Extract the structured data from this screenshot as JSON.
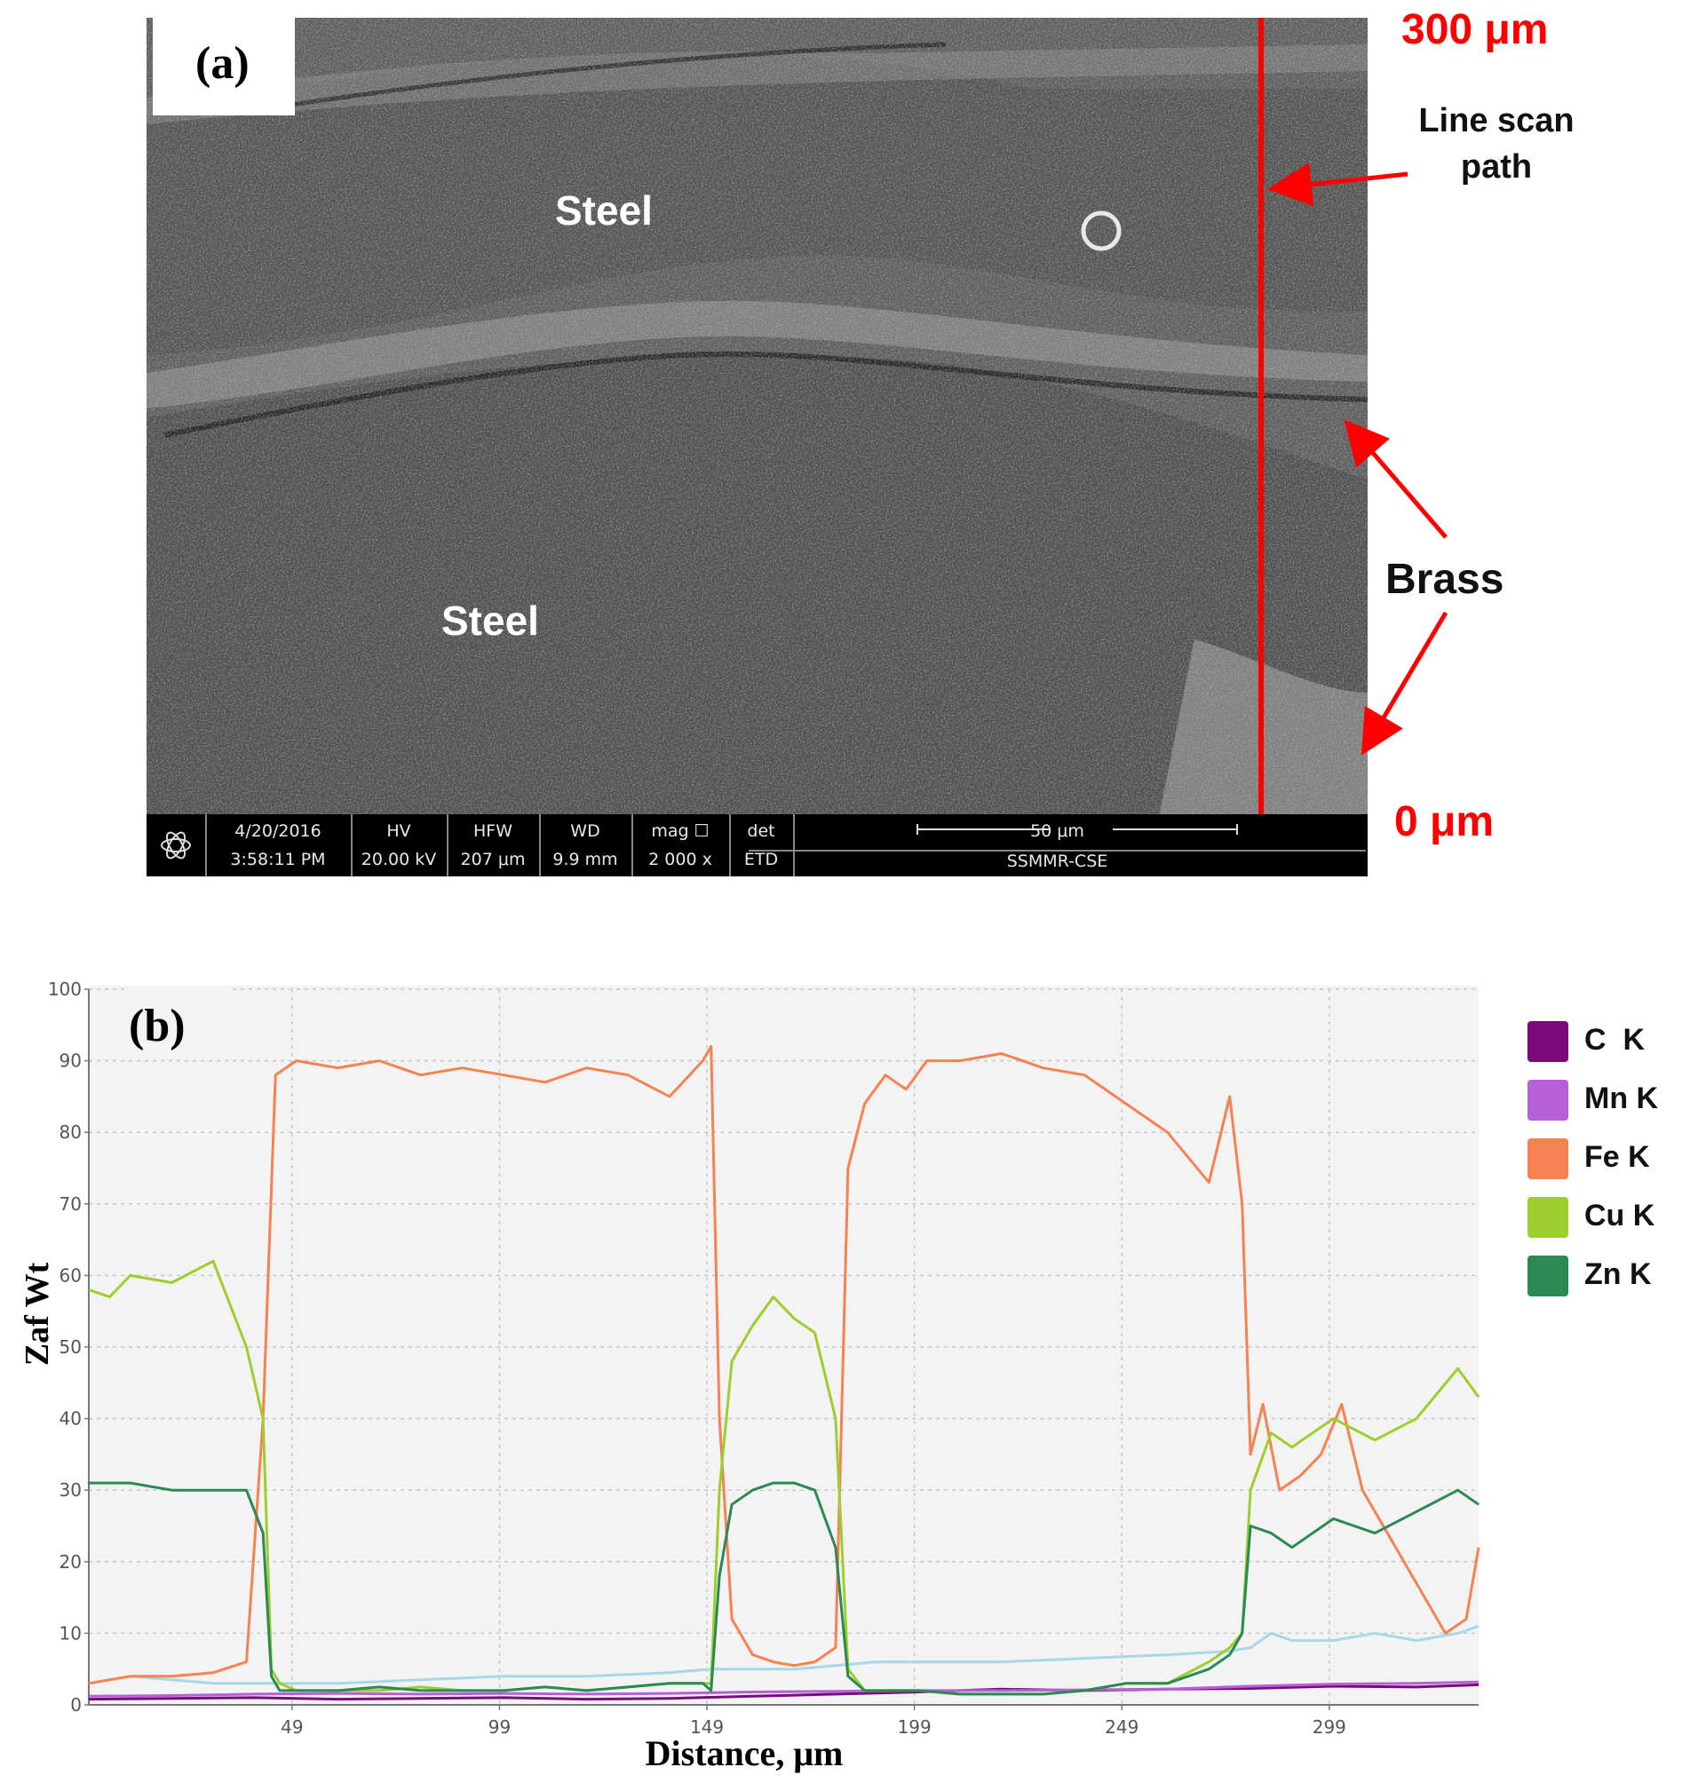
{
  "panel_a": {
    "letter": "(a)",
    "phases": [
      "Steel",
      "Steel"
    ],
    "annotations": {
      "top_scale": "300 μm",
      "bottom_scale": "0 μm",
      "line_scan": "Line scan\npath",
      "line_scan_l1": "Line scan",
      "line_scan_l2": "path",
      "brass": "Brass"
    },
    "info_bar": {
      "date": "4/20/2016",
      "time": "3:58:11 PM",
      "hv_label": "HV",
      "hv_value": "20.00 kV",
      "hfw_label": "HFW",
      "hfw_value": "207 μm",
      "wd_label": "WD",
      "wd_value": "9.9 mm",
      "mag_label": "mag",
      "mag_value": "2 000 x",
      "det_label": "det",
      "det_value": "ETD",
      "scale_label": "50 μm",
      "lab": "SSMMR-CSE"
    },
    "colors": {
      "annotation": "#ff0000",
      "scan_line": "#ff0000"
    }
  },
  "chart_data": {
    "type": "line",
    "panel_letter": "(b)",
    "xlabel": "Distance, μm",
    "ylabel": "Zaf Wt",
    "xlim": [
      0,
      335
    ],
    "ylim": [
      0,
      100
    ],
    "x_ticks": [
      49,
      99,
      149,
      199,
      249,
      299
    ],
    "y_ticks": [
      0,
      10,
      20,
      30,
      40,
      50,
      60,
      70,
      80,
      90,
      100
    ],
    "grid": true,
    "legend_position": "right",
    "series": [
      {
        "name": "C  K",
        "color": "#7a0a7a",
        "x": [
          0,
          20,
          40,
          60,
          80,
          100,
          120,
          140,
          160,
          180,
          200,
          220,
          240,
          260,
          280,
          300,
          320,
          335
        ],
        "y": [
          0.8,
          0.9,
          1.0,
          0.8,
          0.9,
          1.0,
          0.8,
          0.9,
          1.2,
          1.5,
          1.8,
          2.2,
          2.0,
          2.2,
          2.3,
          2.6,
          2.5,
          2.8
        ]
      },
      {
        "name": "Mn K",
        "color": "#b660d8",
        "x": [
          0,
          20,
          40,
          60,
          80,
          100,
          120,
          140,
          160,
          180,
          200,
          220,
          240,
          260,
          280,
          300,
          320,
          335
        ],
        "y": [
          1.2,
          1.3,
          1.5,
          1.6,
          1.5,
          1.6,
          1.5,
          1.6,
          1.8,
          1.9,
          2.0,
          2.0,
          2.1,
          2.2,
          2.6,
          2.9,
          3.0,
          3.2
        ]
      },
      {
        "name": "Fe K",
        "color": "#f58250",
        "x": [
          0,
          10,
          20,
          30,
          38,
          42,
          45,
          50,
          60,
          70,
          80,
          90,
          100,
          110,
          120,
          130,
          140,
          148,
          150,
          152,
          155,
          160,
          165,
          170,
          175,
          180,
          183,
          187,
          192,
          197,
          202,
          210,
          220,
          230,
          240,
          250,
          260,
          270,
          275,
          278,
          280,
          283,
          287,
          292,
          297,
          302,
          307,
          312,
          317,
          322,
          327,
          332,
          335
        ],
        "y": [
          3,
          4,
          4,
          4.5,
          6,
          40,
          88,
          90,
          89,
          90,
          88,
          89,
          88,
          87,
          89,
          88,
          85,
          90,
          92,
          40,
          12,
          7,
          6,
          5.5,
          6,
          8,
          75,
          84,
          88,
          86,
          90,
          90,
          91,
          89,
          88,
          84,
          80,
          73,
          85,
          70,
          35,
          42,
          30,
          32,
          35,
          42,
          30,
          25,
          20,
          15,
          10,
          12,
          22
        ]
      },
      {
        "name": "Cu K",
        "color": "#9ccf2e",
        "x": [
          0,
          5,
          10,
          20,
          30,
          38,
          42,
          44,
          46,
          50,
          60,
          70,
          80,
          90,
          100,
          110,
          120,
          130,
          140,
          148,
          150,
          152,
          155,
          160,
          165,
          170,
          175,
          180,
          183,
          187,
          192,
          200,
          210,
          220,
          230,
          240,
          250,
          260,
          270,
          275,
          278,
          280,
          285,
          290,
          300,
          310,
          320,
          330,
          335
        ],
        "y": [
          58,
          57,
          60,
          59,
          62,
          50,
          40,
          5,
          3,
          2,
          2,
          2,
          2.5,
          2,
          2,
          2.5,
          2,
          2.5,
          3,
          3,
          3,
          30,
          48,
          53,
          57,
          54,
          52,
          40,
          5,
          2,
          2,
          2,
          1.5,
          1.5,
          1.5,
          2,
          3,
          3,
          6,
          8,
          10,
          30,
          38,
          36,
          40,
          37,
          40,
          47,
          43
        ]
      },
      {
        "name": "Zn K",
        "color": "#2a8a52",
        "x": [
          0,
          10,
          20,
          30,
          38,
          42,
          44,
          46,
          50,
          60,
          70,
          80,
          90,
          100,
          110,
          120,
          130,
          140,
          148,
          150,
          152,
          155,
          160,
          165,
          170,
          175,
          180,
          183,
          187,
          192,
          200,
          210,
          220,
          230,
          240,
          250,
          260,
          270,
          275,
          278,
          280,
          285,
          290,
          300,
          310,
          320,
          330,
          335
        ],
        "y": [
          31,
          31,
          30,
          30,
          30,
          24,
          4,
          2,
          2,
          2,
          2.5,
          2,
          2,
          2,
          2.5,
          2,
          2.5,
          3,
          3,
          2,
          18,
          28,
          30,
          31,
          31,
          30,
          22,
          4,
          2,
          2,
          2,
          1.5,
          1.5,
          1.5,
          2,
          3,
          3,
          5,
          7,
          10,
          25,
          24,
          22,
          26,
          24,
          27,
          30,
          28
        ]
      },
      {
        "name": "",
        "color": "#a8d8e8",
        "x": [
          0,
          10,
          20,
          30,
          40,
          48,
          60,
          80,
          100,
          120,
          140,
          150,
          155,
          160,
          170,
          180,
          190,
          200,
          220,
          240,
          260,
          275,
          280,
          285,
          290,
          300,
          310,
          320,
          330,
          335
        ],
        "y": [
          3,
          4,
          3.5,
          3,
          3,
          3,
          3,
          3.5,
          4,
          4,
          4.5,
          5,
          5,
          5,
          5,
          5.5,
          6,
          6,
          6,
          6.5,
          7,
          7.5,
          8,
          10,
          9,
          9,
          10,
          9,
          10,
          11
        ]
      }
    ]
  }
}
